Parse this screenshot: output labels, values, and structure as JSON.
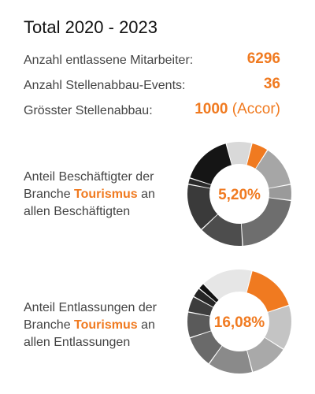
{
  "title": "Total 2020 - 2023",
  "stats": [
    {
      "label": "Anzahl entlassene Mitarbeiter:",
      "value": "6296",
      "note": ""
    },
    {
      "label": "Anzahl Stellenabbau-Events:",
      "value": "36",
      "note": ""
    },
    {
      "label": "Grösster Stellenabbau:",
      "value": "1000",
      "note": "(Accor)"
    }
  ],
  "accent_color": "#f07a20",
  "blocks": [
    {
      "line1": "Anteil Beschäftigter der",
      "line2_prefix": "Branche",
      "highlight": "Tourismus",
      "line2_suffix": "an",
      "line3": "allen Beschäftigten",
      "center_value": "5,20%",
      "highlight_fraction": 0.052
    },
    {
      "line1": "Anteil Entlassungen der",
      "line2_prefix": "Branche",
      "highlight": "Tourismus",
      "line2_suffix": "an",
      "line3": "allen Entlassungen",
      "center_value": "16,08%",
      "highlight_fraction": 0.1608
    }
  ]
}
